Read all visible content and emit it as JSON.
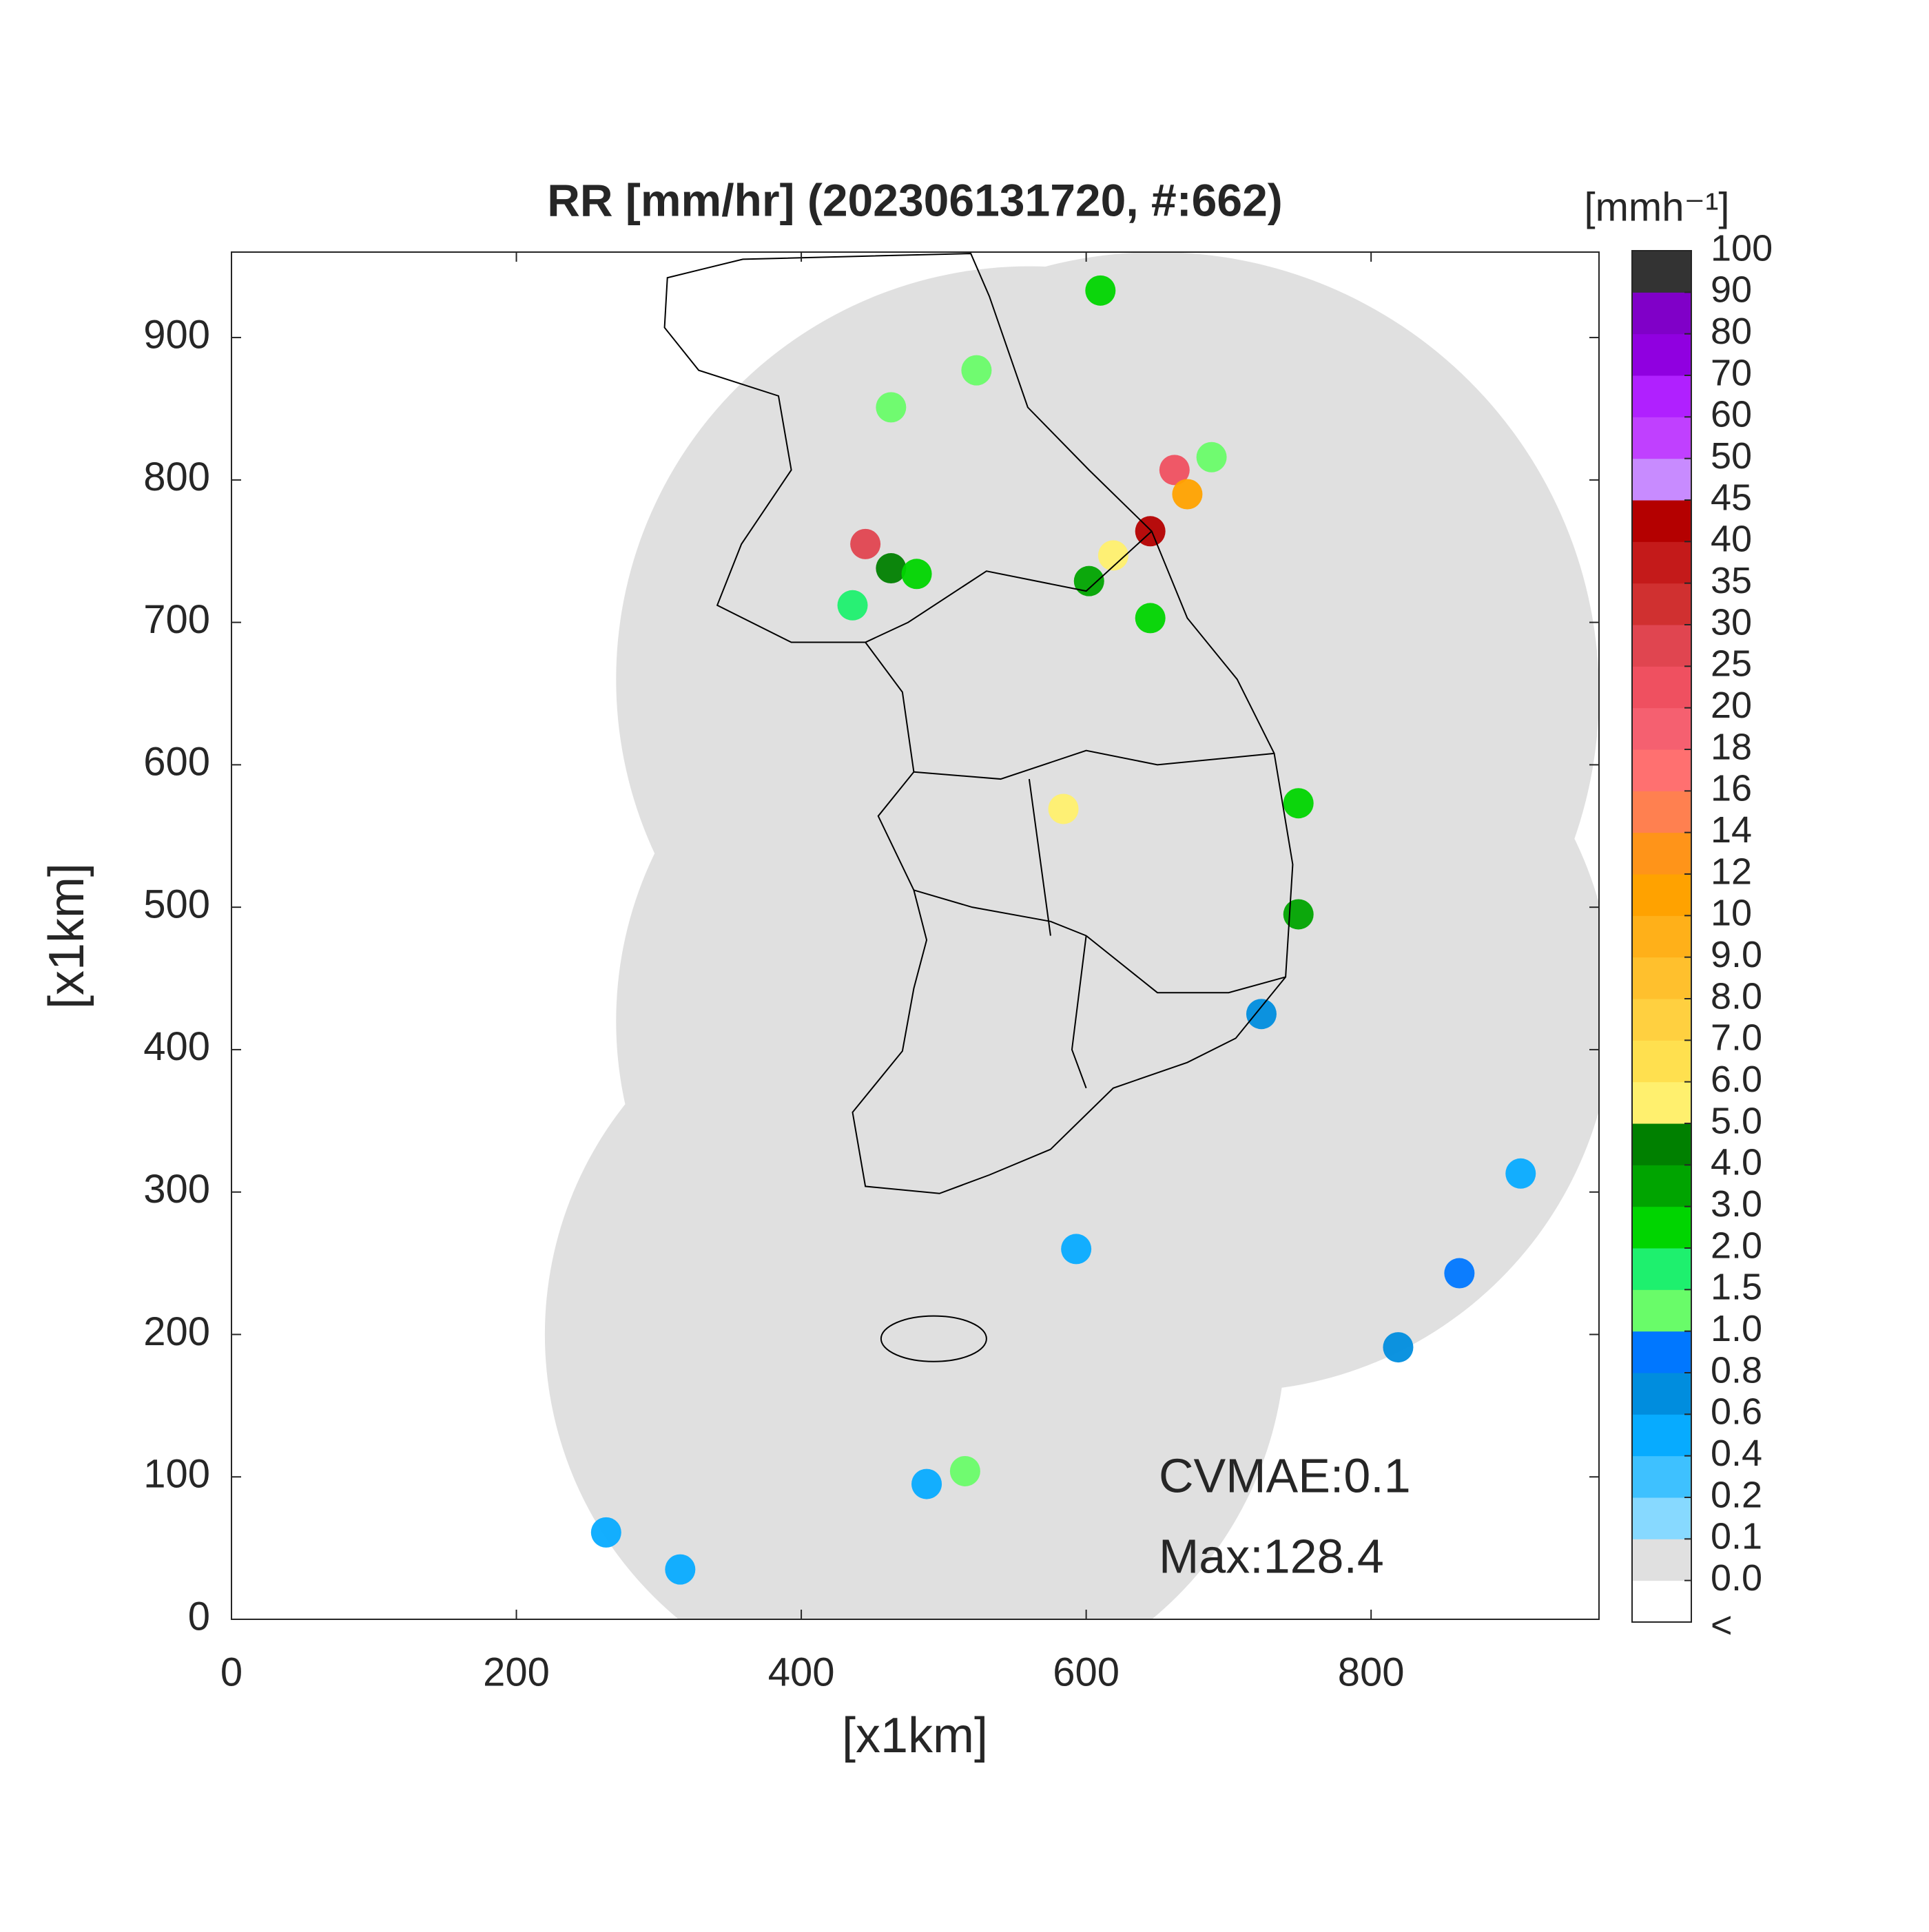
{
  "chart_data": {
    "type": "map",
    "title": "RR [mm/hr] (202306131720, #:662)",
    "xlabel": "[x1km]",
    "ylabel": "[x1km]",
    "xlim": [
      0,
      960
    ],
    "ylim": [
      0,
      960
    ],
    "xticks": [
      0,
      200,
      400,
      600,
      800
    ],
    "yticks": [
      0,
      100,
      200,
      300,
      400,
      500,
      600,
      700,
      800,
      900
    ],
    "annotations": [
      "CVMAE:0.1",
      "Max:128.4"
    ],
    "colorbar": {
      "title": "[mmh⁻¹]",
      "under_label": "<",
      "under_color": "#ffffff",
      "ticks": [
        {
          "value": 0,
          "label": "0.0"
        },
        0.1,
        0.2,
        0.4,
        0.6,
        0.8,
        {
          "value": 1,
          "label": "1.0"
        },
        1.5,
        {
          "value": 2,
          "label": "2.0"
        },
        {
          "value": 3,
          "label": "3.0"
        },
        {
          "value": 4,
          "label": "4.0"
        },
        {
          "value": 5,
          "label": "5.0"
        },
        {
          "value": 6,
          "label": "6.0"
        },
        {
          "value": 7,
          "label": "7.0"
        },
        {
          "value": 8,
          "label": "8.0"
        },
        {
          "value": 9,
          "label": "9.0"
        },
        10,
        12,
        14,
        16,
        18,
        20,
        25,
        30,
        35,
        40,
        45,
        50,
        60,
        70,
        80,
        90,
        100
      ],
      "colors": [
        "#e0e0e0",
        "#87d9ff",
        "#3ec1ff",
        "#07abff",
        "#008dde",
        "#0077ff",
        "#69fc69",
        "#1ef06e",
        "#00d500",
        "#00a400",
        "#008000",
        "#fff06e",
        "#ffe04f",
        "#ffd040",
        "#ffc02d",
        "#ffb019",
        "#ffa200",
        "#ff9419",
        "#ff8050",
        "#ff7070",
        "#f56070",
        "#ef5060",
        "#e04550",
        "#d03030",
        "#c41a1a",
        "#b40000",
        "#c88bff",
        "#c040ff",
        "#b020ff",
        "#9000e0",
        "#8000c8",
        "#333333"
      ]
    },
    "points": {
      "x": [
        662,
        645,
        619,
        602,
        671,
        688,
        645,
        445,
        463,
        481,
        436,
        463,
        523,
        610,
        584,
        749,
        749,
        723,
        819,
        862,
        905,
        515,
        488,
        263,
        315,
        593
      ],
      "y": [
        807,
        764,
        747,
        729,
        790,
        816,
        703,
        755,
        738,
        734,
        712,
        851,
        877,
        933,
        569,
        573,
        495,
        425,
        191,
        243,
        313,
        104,
        95,
        61,
        35,
        260
      ],
      "values": [
        20,
        40,
        5,
        3,
        10,
        1,
        2,
        25,
        4,
        2,
        1.5,
        1,
        1,
        2,
        5,
        2,
        3,
        0.6,
        0.6,
        0.8,
        0.4,
        1,
        0.4,
        0.4,
        0.4,
        0.4
      ]
    }
  }
}
